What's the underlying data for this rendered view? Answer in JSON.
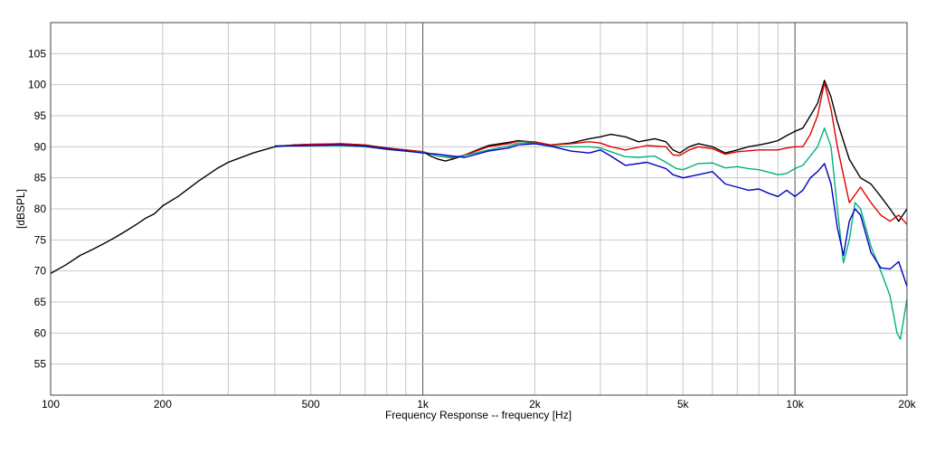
{
  "chart_data": {
    "type": "line",
    "xlabel": "Frequency Response -- frequency [Hz]",
    "ylabel": "[dBSPL]",
    "x_scale": "log",
    "xlim": [
      100,
      20000
    ],
    "ylim": [
      50,
      110
    ],
    "grid": true,
    "x_ticks": [
      {
        "value": 100,
        "label": "100"
      },
      {
        "value": 200,
        "label": "200"
      },
      {
        "value": 500,
        "label": "500"
      },
      {
        "value": 1000,
        "label": "1k"
      },
      {
        "value": 2000,
        "label": "2k"
      },
      {
        "value": 5000,
        "label": "5k"
      },
      {
        "value": 10000,
        "label": "10k"
      },
      {
        "value": 20000,
        "label": "20k"
      }
    ],
    "y_ticks": [
      55,
      60,
      65,
      70,
      75,
      80,
      85,
      90,
      95,
      100,
      105
    ],
    "series": [
      {
        "color": "#000000",
        "points": [
          [
            100,
            69.6
          ],
          [
            110,
            71
          ],
          [
            120,
            72.5
          ],
          [
            130,
            73.5
          ],
          [
            140,
            74.5
          ],
          [
            150,
            75.5
          ],
          [
            160,
            76.5
          ],
          [
            170,
            77.5
          ],
          [
            180,
            78.5
          ],
          [
            190,
            79.2
          ],
          [
            200,
            80.5
          ],
          [
            220,
            82
          ],
          [
            250,
            84.5
          ],
          [
            280,
            86.5
          ],
          [
            300,
            87.5
          ],
          [
            350,
            89
          ],
          [
            400,
            90
          ],
          [
            450,
            90.3
          ],
          [
            500,
            90.4
          ],
          [
            550,
            90.4
          ],
          [
            600,
            90.5
          ],
          [
            700,
            90.3
          ],
          [
            800,
            89.8
          ],
          [
            900,
            89.5
          ],
          [
            1000,
            89.2
          ],
          [
            1050,
            88.5
          ],
          [
            1100,
            88
          ],
          [
            1150,
            87.7
          ],
          [
            1200,
            88
          ],
          [
            1300,
            88.7
          ],
          [
            1400,
            89.5
          ],
          [
            1500,
            90.2
          ],
          [
            1700,
            90.7
          ],
          [
            1800,
            91
          ],
          [
            2000,
            90.7
          ],
          [
            2200,
            90.3
          ],
          [
            2500,
            90.6
          ],
          [
            2800,
            91.3
          ],
          [
            3000,
            91.6
          ],
          [
            3200,
            92
          ],
          [
            3500,
            91.6
          ],
          [
            3800,
            90.8
          ],
          [
            4200,
            91.3
          ],
          [
            4500,
            90.8
          ],
          [
            4700,
            89.5
          ],
          [
            4900,
            89
          ],
          [
            5200,
            90
          ],
          [
            5500,
            90.5
          ],
          [
            6000,
            90
          ],
          [
            6500,
            89
          ],
          [
            7000,
            89.5
          ],
          [
            7500,
            90
          ],
          [
            8000,
            90.3
          ],
          [
            8500,
            90.6
          ],
          [
            9000,
            91
          ],
          [
            9500,
            91.8
          ],
          [
            10000,
            92.5
          ],
          [
            10500,
            93
          ],
          [
            11000,
            95
          ],
          [
            11500,
            97
          ],
          [
            12000,
            100.7
          ],
          [
            12500,
            98
          ],
          [
            13000,
            94
          ],
          [
            14000,
            88
          ],
          [
            15000,
            85
          ],
          [
            16000,
            84
          ],
          [
            17000,
            82
          ],
          [
            18000,
            80
          ],
          [
            19000,
            78
          ],
          [
            20000,
            80
          ]
        ]
      },
      {
        "color": "#e00000",
        "points": [
          [
            400,
            90.1
          ],
          [
            500,
            90.4
          ],
          [
            600,
            90.5
          ],
          [
            700,
            90.3
          ],
          [
            800,
            89.7
          ],
          [
            900,
            89.5
          ],
          [
            1000,
            89.2
          ],
          [
            1100,
            88.5
          ],
          [
            1200,
            88.2
          ],
          [
            1300,
            88.7
          ],
          [
            1500,
            90
          ],
          [
            1700,
            90.5
          ],
          [
            1800,
            90.9
          ],
          [
            2000,
            90.8
          ],
          [
            2200,
            90.3
          ],
          [
            2500,
            90.5
          ],
          [
            2800,
            90.8
          ],
          [
            3000,
            90.6
          ],
          [
            3200,
            90
          ],
          [
            3500,
            89.5
          ],
          [
            4000,
            90.2
          ],
          [
            4500,
            90
          ],
          [
            4700,
            88.7
          ],
          [
            4900,
            88.6
          ],
          [
            5200,
            89.5
          ],
          [
            5500,
            90
          ],
          [
            6000,
            89.7
          ],
          [
            6500,
            88.8
          ],
          [
            7000,
            89.2
          ],
          [
            8000,
            89.5
          ],
          [
            9000,
            89.5
          ],
          [
            9500,
            89.8
          ],
          [
            10000,
            90
          ],
          [
            10500,
            90
          ],
          [
            11000,
            92
          ],
          [
            11500,
            95
          ],
          [
            12000,
            100.3
          ],
          [
            12500,
            96
          ],
          [
            13000,
            90
          ],
          [
            14000,
            81
          ],
          [
            15000,
            83.5
          ],
          [
            16000,
            81
          ],
          [
            17000,
            79
          ],
          [
            18000,
            78
          ],
          [
            19000,
            79
          ],
          [
            20000,
            77.5
          ]
        ]
      },
      {
        "color": "#00b080",
        "points": [
          [
            400,
            90.1
          ],
          [
            500,
            90.2
          ],
          [
            600,
            90.2
          ],
          [
            700,
            90
          ],
          [
            800,
            89.6
          ],
          [
            900,
            89.3
          ],
          [
            1000,
            89.1
          ],
          [
            1100,
            88.5
          ],
          [
            1200,
            88.3
          ],
          [
            1300,
            88.6
          ],
          [
            1500,
            89.5
          ],
          [
            1700,
            90.1
          ],
          [
            1800,
            90.6
          ],
          [
            2000,
            90.6
          ],
          [
            2200,
            90.1
          ],
          [
            2500,
            90
          ],
          [
            2800,
            90
          ],
          [
            3000,
            89.8
          ],
          [
            3200,
            89.2
          ],
          [
            3500,
            88.4
          ],
          [
            3800,
            88.3
          ],
          [
            4200,
            88.5
          ],
          [
            4500,
            87.5
          ],
          [
            4800,
            86.5
          ],
          [
            5000,
            86.3
          ],
          [
            5500,
            87.3
          ],
          [
            6000,
            87.4
          ],
          [
            6500,
            86.6
          ],
          [
            7000,
            86.8
          ],
          [
            7500,
            86.5
          ],
          [
            8000,
            86.3
          ],
          [
            9000,
            85.5
          ],
          [
            9500,
            85.7
          ],
          [
            10000,
            86.5
          ],
          [
            10500,
            87
          ],
          [
            11000,
            88.5
          ],
          [
            11500,
            90
          ],
          [
            12000,
            93
          ],
          [
            12500,
            90
          ],
          [
            13000,
            80
          ],
          [
            13500,
            71.3
          ],
          [
            14000,
            75
          ],
          [
            14500,
            81
          ],
          [
            15000,
            80
          ],
          [
            16000,
            74
          ],
          [
            17000,
            70
          ],
          [
            18000,
            66
          ],
          [
            18800,
            60
          ],
          [
            19200,
            59
          ],
          [
            20000,
            65.5
          ]
        ]
      },
      {
        "color": "#0000c0",
        "points": [
          [
            400,
            90.1
          ],
          [
            500,
            90.2
          ],
          [
            600,
            90.3
          ],
          [
            700,
            90.1
          ],
          [
            800,
            89.6
          ],
          [
            900,
            89.3
          ],
          [
            1000,
            89
          ],
          [
            1100,
            88.8
          ],
          [
            1200,
            88.5
          ],
          [
            1300,
            88.3
          ],
          [
            1500,
            89.3
          ],
          [
            1700,
            89.8
          ],
          [
            1800,
            90.3
          ],
          [
            2000,
            90.5
          ],
          [
            2200,
            90.1
          ],
          [
            2500,
            89.3
          ],
          [
            2800,
            89
          ],
          [
            3000,
            89.5
          ],
          [
            3200,
            88.5
          ],
          [
            3500,
            87
          ],
          [
            4000,
            87.5
          ],
          [
            4500,
            86.5
          ],
          [
            4700,
            85.5
          ],
          [
            5000,
            85
          ],
          [
            5500,
            85.5
          ],
          [
            6000,
            86
          ],
          [
            6500,
            84
          ],
          [
            7000,
            83.5
          ],
          [
            7500,
            83
          ],
          [
            8000,
            83.2
          ],
          [
            8500,
            82.5
          ],
          [
            9000,
            82
          ],
          [
            9500,
            83
          ],
          [
            10000,
            82
          ],
          [
            10500,
            83
          ],
          [
            11000,
            85
          ],
          [
            11500,
            86
          ],
          [
            12000,
            87.3
          ],
          [
            12500,
            84
          ],
          [
            13000,
            77
          ],
          [
            13500,
            72.5
          ],
          [
            14000,
            78
          ],
          [
            14500,
            80
          ],
          [
            15000,
            79
          ],
          [
            16000,
            73
          ],
          [
            17000,
            70.5
          ],
          [
            18000,
            70.3
          ],
          [
            19000,
            71.5
          ],
          [
            20000,
            67.5
          ]
        ]
      }
    ]
  }
}
